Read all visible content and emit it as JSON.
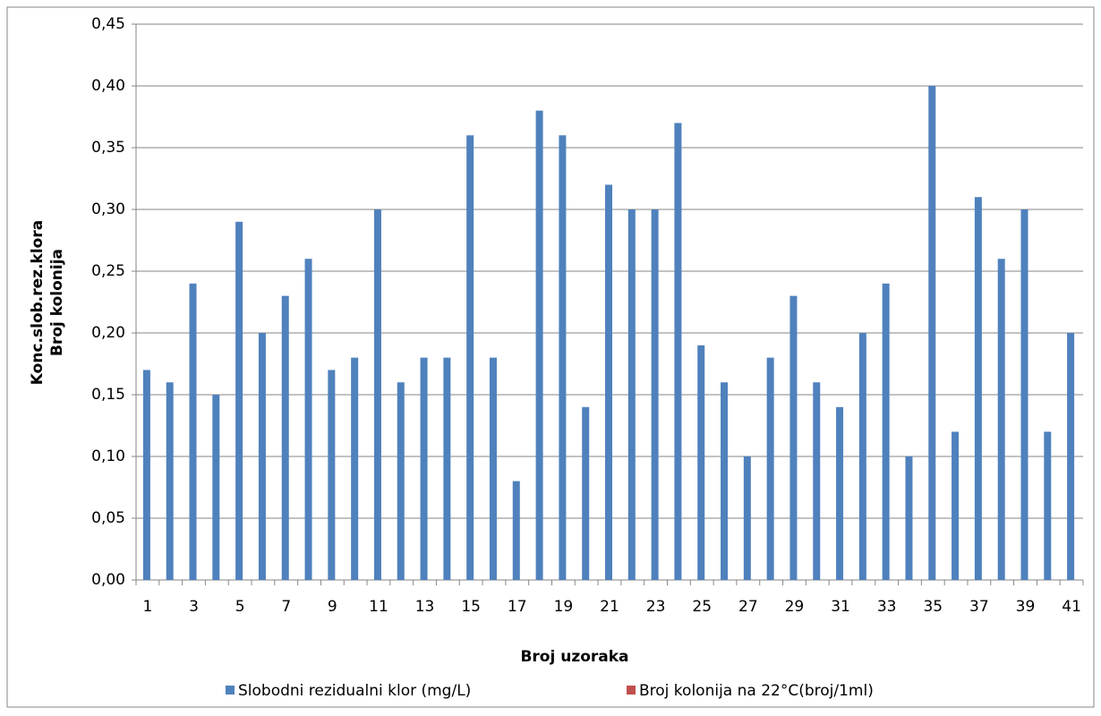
{
  "chart_data": {
    "type": "bar",
    "y_label": [
      "Konc.slob.rez.klora",
      "Broj kolonija"
    ],
    "x_label": "Broj uzoraka",
    "categories": [
      "1",
      null,
      "3",
      null,
      "5",
      null,
      "7",
      null,
      "9",
      null,
      "11",
      null,
      "13",
      null,
      "15",
      null,
      "17",
      null,
      "19",
      null,
      "21",
      null,
      "23",
      null,
      "25",
      null,
      "27",
      null,
      "29",
      null,
      "31",
      null,
      "33",
      null,
      "35",
      null,
      "37",
      null,
      "39",
      null,
      "41"
    ],
    "series": [
      {
        "name": "Slobodni rezidualni klor (mg/L)",
        "color": "#4f81bd",
        "values": [
          0.17,
          0.16,
          0.24,
          0.15,
          0.29,
          0.2,
          0.23,
          0.26,
          0.17,
          0.18,
          0.3,
          0.16,
          0.18,
          0.18,
          0.36,
          0.18,
          0.08,
          0.38,
          0.36,
          0.14,
          0.32,
          0.3,
          0.3,
          0.37,
          0.19,
          0.16,
          0.1,
          0.18,
          0.23,
          0.16,
          0.14,
          0.2,
          0.24,
          0.1,
          0.4,
          0.12,
          0.31,
          0.26,
          0.3,
          0.12,
          0.2
        ]
      },
      {
        "name": "Broj kolonija na 22°C(broj/1ml)",
        "color": "#c0504d",
        "values": [
          0,
          0,
          0,
          0,
          0,
          0,
          0,
          0,
          0,
          0,
          0,
          0,
          0,
          0,
          0,
          0,
          0,
          0,
          0,
          0,
          0,
          0,
          0,
          0,
          0,
          0,
          0,
          0,
          0,
          0,
          0,
          0,
          0,
          0,
          0,
          0,
          0,
          0,
          0,
          0,
          0
        ]
      }
    ],
    "ylim": [
      0,
      0.45
    ],
    "yticks": [
      {
        "value": 0,
        "label": "0,00"
      },
      {
        "value": 0.05,
        "label": "0,05"
      },
      {
        "value": 0.1,
        "label": "0,10"
      },
      {
        "value": 0.15,
        "label": "0,15"
      },
      {
        "value": 0.2,
        "label": "0,20"
      },
      {
        "value": 0.25,
        "label": "0,25"
      },
      {
        "value": 0.3,
        "label": "0,30"
      },
      {
        "value": 0.35,
        "label": "0,35"
      },
      {
        "value": 0.4,
        "label": "0,40"
      },
      {
        "value": 0.45,
        "label": "0,45"
      }
    ],
    "grid": true,
    "legend": "bottom"
  }
}
